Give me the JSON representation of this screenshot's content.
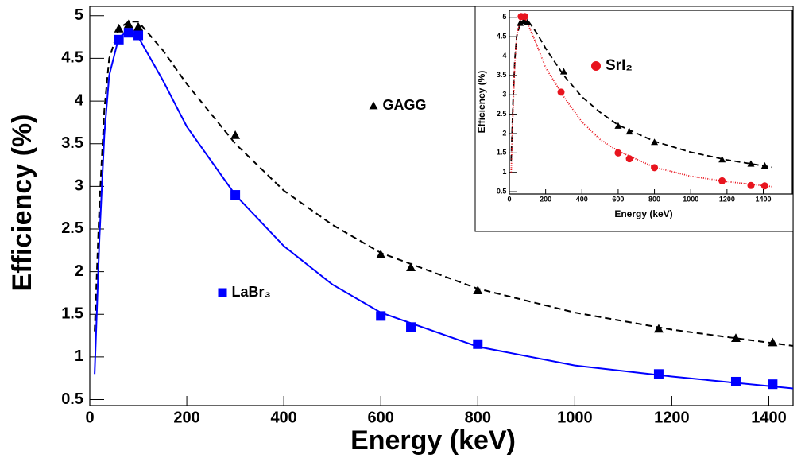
{
  "chart_data": [
    {
      "type": "scatter",
      "xlabel": "Energy (keV)",
      "ylabel": "Efficiency (%)",
      "xlim": [
        0,
        1450
      ],
      "ylim": [
        0.43,
        5.11
      ],
      "xticks": [
        0,
        200,
        400,
        600,
        800,
        1000,
        1200,
        1400
      ],
      "yticks": [
        0.5,
        1,
        1.5,
        2,
        2.5,
        3,
        3.5,
        4,
        4.5,
        5
      ],
      "series": [
        {
          "name": "GAGG",
          "color": "#000000",
          "marker": "triangle",
          "x": [
            60,
            80,
            100,
            300,
            600,
            662,
            800,
            1173,
            1332,
            1408
          ],
          "values": [
            4.85,
            4.9,
            4.87,
            3.6,
            2.2,
            2.05,
            1.78,
            1.33,
            1.22,
            1.17
          ]
        },
        {
          "name": "LaBr₃",
          "color": "#0000ff",
          "marker": "square",
          "x": [
            60,
            80,
            100,
            300,
            600,
            662,
            800,
            1173,
            1332,
            1408
          ],
          "values": [
            4.72,
            4.8,
            4.77,
            2.9,
            1.48,
            1.35,
            1.15,
            0.8,
            0.71,
            0.68
          ]
        },
        {
          "color": "#000000",
          "line_style": "dashed",
          "x": [
            10,
            20,
            30,
            40,
            60,
            80,
            100,
            150,
            200,
            300,
            400,
            500,
            600,
            800,
            1000,
            1200,
            1450
          ],
          "values": [
            1.3,
            2.8,
            3.9,
            4.5,
            4.85,
            4.93,
            4.93,
            4.6,
            4.2,
            3.5,
            2.95,
            2.55,
            2.22,
            1.8,
            1.52,
            1.32,
            1.13
          ]
        },
        {
          "color": "#0000ff",
          "line_style": "solid",
          "x": [
            10,
            20,
            30,
            40,
            60,
            80,
            100,
            150,
            200,
            300,
            400,
            500,
            600,
            800,
            1000,
            1200,
            1450
          ],
          "values": [
            0.8,
            2.4,
            3.6,
            4.3,
            4.75,
            4.82,
            4.75,
            4.25,
            3.7,
            2.9,
            2.3,
            1.85,
            1.52,
            1.12,
            0.9,
            0.77,
            0.63
          ]
        }
      ]
    },
    {
      "type": "scatter",
      "xlabel": "Energy (keV)",
      "ylabel": "Efficiency (%)",
      "xlim": [
        0,
        1560
      ],
      "ylim": [
        0.44,
        5.18
      ],
      "xticks": [
        0,
        200,
        400,
        600,
        800,
        1000,
        1200,
        1400
      ],
      "yticks": [
        0.5,
        1,
        1.5,
        2,
        2.5,
        3,
        3.5,
        4,
        4.5,
        5
      ],
      "series": [
        {
          "color": "#000000",
          "marker": "triangle",
          "x": [
            60,
            80,
            100,
            300,
            600,
            662,
            800,
            1173,
            1332,
            1408
          ],
          "values": [
            4.85,
            4.9,
            4.87,
            3.6,
            2.2,
            2.05,
            1.78,
            1.33,
            1.22,
            1.17
          ]
        },
        {
          "name": "SrI₂",
          "color": "#e8141e",
          "marker": "circle",
          "x": [
            65,
            85,
            285,
            600,
            662,
            800,
            1173,
            1332,
            1408
          ],
          "values": [
            5.02,
            5.02,
            3.07,
            1.5,
            1.35,
            1.12,
            0.78,
            0.66,
            0.65
          ]
        },
        {
          "color": "#000000",
          "line_style": "dashed",
          "x": [
            10,
            20,
            30,
            40,
            60,
            80,
            100,
            150,
            200,
            300,
            400,
            500,
            600,
            800,
            1000,
            1200,
            1450
          ],
          "values": [
            1.3,
            2.8,
            3.9,
            4.5,
            4.85,
            4.93,
            4.93,
            4.6,
            4.2,
            3.5,
            2.95,
            2.55,
            2.22,
            1.8,
            1.52,
            1.32,
            1.13
          ]
        },
        {
          "color": "#e8141e",
          "line_style": "dotted",
          "x": [
            10,
            20,
            30,
            40,
            60,
            80,
            100,
            150,
            200,
            300,
            400,
            500,
            600,
            800,
            1000,
            1200,
            1450
          ],
          "values": [
            1.0,
            2.6,
            3.8,
            4.5,
            4.95,
            5.0,
            4.85,
            4.3,
            3.7,
            2.95,
            2.3,
            1.85,
            1.55,
            1.13,
            0.9,
            0.76,
            0.63
          ]
        }
      ]
    }
  ]
}
